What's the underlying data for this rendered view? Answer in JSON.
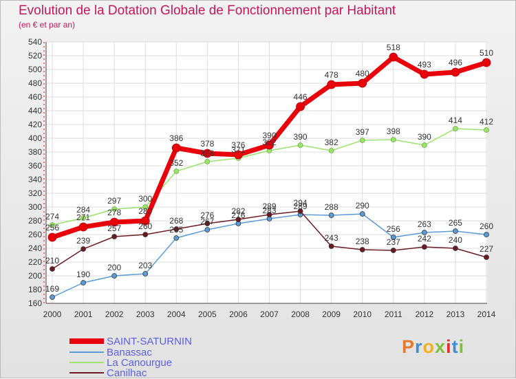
{
  "header": {
    "title": "Evolution de la Dotation Globale de Fonctionnement par Habitant",
    "subtitle": "(en € et par an)"
  },
  "logo": {
    "text": "Proxiti",
    "colors": [
      "#e8782a",
      "#3a8fd6",
      "#f0b01c",
      "#7fbf3f",
      "#d9342b",
      "#3a8fd6",
      "#7fbf3f"
    ]
  },
  "chart_data": {
    "type": "line",
    "x": [
      "2000",
      "2001",
      "2002",
      "2003",
      "2004",
      "2005",
      "2006",
      "2007",
      "2008",
      "2009",
      "2010",
      "2011",
      "2012",
      "2013",
      "2014"
    ],
    "ylim": [
      160,
      540
    ],
    "yticks": [
      160,
      180,
      200,
      220,
      240,
      260,
      280,
      300,
      320,
      340,
      360,
      380,
      400,
      420,
      440,
      460,
      480,
      500,
      520,
      540
    ],
    "grid": true,
    "legend_position": "bottom-left",
    "series": [
      {
        "name": "SAINT-SATURNIN",
        "color": "#e8000b",
        "width": 7,
        "values": [
          256,
          271,
          278,
          280,
          386,
          378,
          376,
          390,
          446,
          478,
          480,
          518,
          493,
          496,
          510
        ]
      },
      {
        "name": "Banassac",
        "color": "#5b9bd5",
        "width": 1.5,
        "values": [
          169,
          190,
          200,
          203,
          255,
          267,
          276,
          283,
          289,
          288,
          290,
          256,
          263,
          265,
          260
        ]
      },
      {
        "name": "La Canourgue",
        "color": "#9be36b",
        "width": 1.5,
        "values": [
          274,
          284,
          297,
          300,
          352,
          366,
          371,
          382,
          390,
          382,
          397,
          398,
          390,
          414,
          412
        ]
      },
      {
        "name": "Canilhac",
        "color": "#6b1a22",
        "width": 1.5,
        "values": [
          210,
          239,
          257,
          260,
          268,
          276,
          282,
          289,
          294,
          243,
          238,
          237,
          242,
          240,
          227
        ]
      }
    ]
  }
}
